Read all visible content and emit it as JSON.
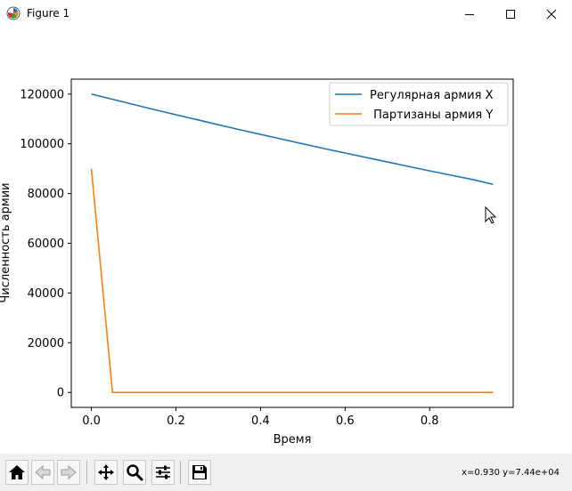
{
  "window": {
    "title": "Figure 1",
    "icon": "matplotlib-logo-icon"
  },
  "toolbar": {
    "buttons": [
      {
        "name": "home-button",
        "icon": "home-icon"
      },
      {
        "name": "back-button",
        "icon": "back-arrow-icon"
      },
      {
        "name": "forward-button",
        "icon": "forward-arrow-icon"
      },
      {
        "name": "pan-button",
        "icon": "move-icon"
      },
      {
        "name": "zoom-button",
        "icon": "magnifier-icon"
      },
      {
        "name": "configure-button",
        "icon": "sliders-icon"
      },
      {
        "name": "save-button",
        "icon": "floppy-disk-icon"
      }
    ],
    "coordinates": "x=0.930 y=7.44e+04"
  },
  "colors": {
    "series1": "#1f77b4",
    "series2": "#ff7f0e"
  },
  "chart_data": {
    "type": "line",
    "title": "",
    "xlabel": "Время",
    "ylabel": "Численность армии",
    "xlim": [
      -0.0475,
      0.9975
    ],
    "ylim": [
      -6000,
      126000
    ],
    "xticks": [
      0.0,
      0.2,
      0.4,
      0.6,
      0.8
    ],
    "xtick_labels": [
      "0.0",
      "0.2",
      "0.4",
      "0.6",
      "0.8"
    ],
    "yticks": [
      0,
      20000,
      40000,
      60000,
      80000,
      100000,
      120000
    ],
    "ytick_labels": [
      "0",
      "20000",
      "40000",
      "60000",
      "80000",
      "100000",
      "120000"
    ],
    "grid": false,
    "legend_position": "top-right",
    "series": [
      {
        "name": "Регулярная армия X",
        "color": "#1f77b4",
        "x": [
          0.0,
          0.05,
          0.1,
          0.15,
          0.2,
          0.25,
          0.3,
          0.35,
          0.4,
          0.45,
          0.5,
          0.55,
          0.6,
          0.65,
          0.7,
          0.75,
          0.8,
          0.85,
          0.9,
          0.95
        ],
        "y": [
          120000,
          117900,
          115800,
          113700,
          111700,
          109700,
          107700,
          105700,
          103800,
          101900,
          100000,
          98100,
          96300,
          94500,
          92700,
          90900,
          89100,
          87400,
          85700,
          83700
        ]
      },
      {
        "name": " Партизаны армия Y",
        "color": "#ff7f0e",
        "x": [
          0.0,
          0.05,
          0.1,
          0.15,
          0.2,
          0.25,
          0.3,
          0.35,
          0.4,
          0.45,
          0.5,
          0.55,
          0.6,
          0.65,
          0.7,
          0.75,
          0.8,
          0.85,
          0.9,
          0.95
        ],
        "y": [
          90000,
          0,
          0,
          0,
          0,
          0,
          0,
          0,
          0,
          0,
          0,
          0,
          0,
          0,
          0,
          0,
          0,
          0,
          0,
          0
        ]
      }
    ]
  }
}
